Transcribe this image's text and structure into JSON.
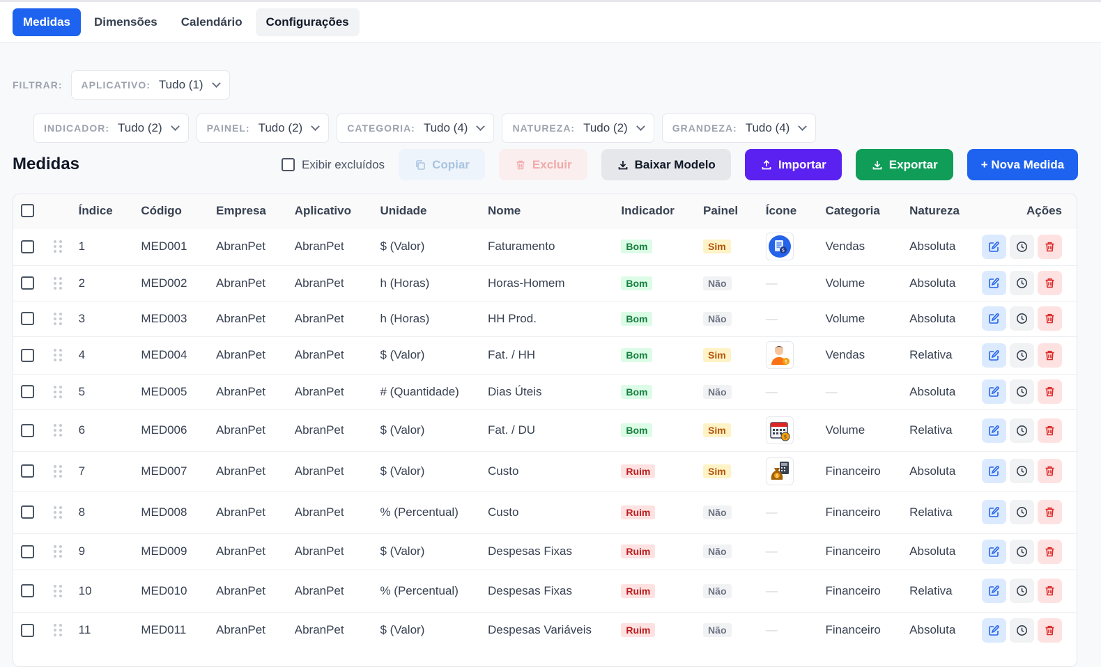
{
  "tabs": [
    {
      "label": "Medidas"
    },
    {
      "label": "Dimensões"
    },
    {
      "label": "Calendário"
    },
    {
      "label": "Configurações"
    }
  ],
  "filters": {
    "label": "FILTRAR:",
    "aplicativo": {
      "key": "APLICATIVO:",
      "value": "Tudo (1)"
    },
    "indicador": {
      "key": "INDICADOR:",
      "value": "Tudo (2)"
    },
    "painel": {
      "key": "PAINEL:",
      "value": "Tudo (2)"
    },
    "categoria": {
      "key": "CATEGORIA:",
      "value": "Tudo (4)"
    },
    "natureza": {
      "key": "NATUREZA:",
      "value": "Tudo (2)"
    },
    "grandeza": {
      "key": "GRANDEZA:",
      "value": "Tudo (4)"
    }
  },
  "section_title": "Medidas",
  "toolbar": {
    "show_deleted": "Exibir excluídos",
    "copy": "Copiar",
    "delete": "Excluir",
    "download_template": "Baixar Modelo",
    "import": "Importar",
    "export": "Exportar",
    "new": "+ Nova Medida"
  },
  "columns": {
    "indice": "Índice",
    "codigo": "Código",
    "empresa": "Empresa",
    "aplicativo": "Aplicativo",
    "unidade": "Unidade",
    "nome": "Nome",
    "indicador": "Indicador",
    "painel": "Painel",
    "icone": "Ícone",
    "categoria": "Categoria",
    "natureza": "Natureza",
    "acoes": "Ações"
  },
  "rows": [
    {
      "indice": "1",
      "codigo": "MED001",
      "empresa": "AbranPet",
      "aplicativo": "AbranPet",
      "unidade": "$ (Valor)",
      "nome": "Faturamento",
      "indicador": "Bom",
      "painel": "Sim",
      "icone": "document-money-icon",
      "categoria": "Vendas",
      "natureza": "Absoluta"
    },
    {
      "indice": "2",
      "codigo": "MED002",
      "empresa": "AbranPet",
      "aplicativo": "AbranPet",
      "unidade": "h (Horas)",
      "nome": "Horas-Homem",
      "indicador": "Bom",
      "painel": "Não",
      "icone": "",
      "categoria": "Volume",
      "natureza": "Absoluta"
    },
    {
      "indice": "3",
      "codigo": "MED003",
      "empresa": "AbranPet",
      "aplicativo": "AbranPet",
      "unidade": "h (Horas)",
      "nome": "HH Prod.",
      "indicador": "Bom",
      "painel": "Não",
      "icone": "",
      "categoria": "Volume",
      "natureza": "Absoluta"
    },
    {
      "indice": "4",
      "codigo": "MED004",
      "empresa": "AbranPet",
      "aplicativo": "AbranPet",
      "unidade": "$ (Valor)",
      "nome": "Fat. / HH",
      "indicador": "Bom",
      "painel": "Sim",
      "icone": "person-coin-icon",
      "categoria": "Vendas",
      "natureza": "Relativa"
    },
    {
      "indice": "5",
      "codigo": "MED005",
      "empresa": "AbranPet",
      "aplicativo": "AbranPet",
      "unidade": "# (Quantidade)",
      "nome": "Dias Úteis",
      "indicador": "Bom",
      "painel": "Não",
      "icone": "",
      "categoria": "",
      "natureza": "Absoluta"
    },
    {
      "indice": "6",
      "codigo": "MED006",
      "empresa": "AbranPet",
      "aplicativo": "AbranPet",
      "unidade": "$ (Valor)",
      "nome": "Fat. / DU",
      "indicador": "Bom",
      "painel": "Sim",
      "icone": "calendar-coin-icon",
      "categoria": "Volume",
      "natureza": "Relativa"
    },
    {
      "indice": "7",
      "codigo": "MED007",
      "empresa": "AbranPet",
      "aplicativo": "AbranPet",
      "unidade": "$ (Valor)",
      "nome": "Custo",
      "indicador": "Ruim",
      "painel": "Sim",
      "icone": "money-bag-calculator-icon",
      "categoria": "Financeiro",
      "natureza": "Absoluta"
    },
    {
      "indice": "8",
      "codigo": "MED008",
      "empresa": "AbranPet",
      "aplicativo": "AbranPet",
      "unidade": "% (Percentual)",
      "nome": "Custo",
      "indicador": "Ruim",
      "painel": "Não",
      "icone": "",
      "categoria": "Financeiro",
      "natureza": "Relativa"
    },
    {
      "indice": "9",
      "codigo": "MED009",
      "empresa": "AbranPet",
      "aplicativo": "AbranPet",
      "unidade": "$ (Valor)",
      "nome": "Despesas Fixas",
      "indicador": "Ruim",
      "painel": "Não",
      "icone": "",
      "categoria": "Financeiro",
      "natureza": "Absoluta"
    },
    {
      "indice": "10",
      "codigo": "MED010",
      "empresa": "AbranPet",
      "aplicativo": "AbranPet",
      "unidade": "% (Percentual)",
      "nome": "Despesas Fixas",
      "indicador": "Ruim",
      "painel": "Não",
      "icone": "",
      "categoria": "Financeiro",
      "natureza": "Relativa"
    },
    {
      "indice": "11",
      "codigo": "MED011",
      "empresa": "AbranPet",
      "aplicativo": "AbranPet",
      "unidade": "$ (Valor)",
      "nome": "Despesas Variáveis",
      "indicador": "Ruim",
      "painel": "Não",
      "icone": "",
      "categoria": "Financeiro",
      "natureza": "Absoluta"
    }
  ],
  "empty_marker": "—"
}
